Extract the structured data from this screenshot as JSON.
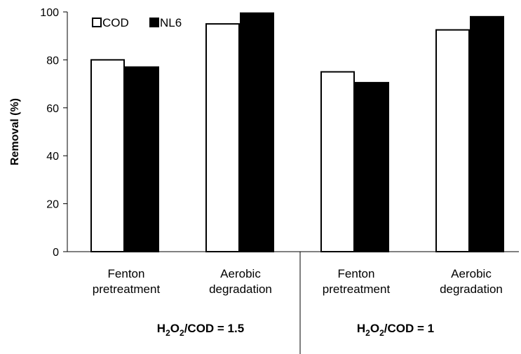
{
  "chart_data": {
    "type": "bar",
    "ylabel": "Removal (%)",
    "ylim": [
      0,
      100
    ],
    "yticks": [
      0,
      20,
      40,
      60,
      80,
      100
    ],
    "grid": false,
    "legend_position": "top-left",
    "categories": [
      {
        "line1": "Fenton",
        "line2": "pretreatment"
      },
      {
        "line1": "Aerobic",
        "line2": "degradation"
      },
      {
        "line1": "Fenton",
        "line2": "pretreatment"
      },
      {
        "line1": "Aerobic",
        "line2": "degradation"
      }
    ],
    "groups": [
      {
        "label_prefix": "H",
        "sub1": "2",
        "mid": "O",
        "sub2": "2",
        "label_suffix": "/COD = 1.5"
      },
      {
        "label_prefix": "H",
        "sub1": "2",
        "mid": "O",
        "sub2": "2",
        "label_suffix": "/COD = 1"
      }
    ],
    "series": [
      {
        "name": "COD",
        "color": "#ffffff",
        "values": [
          80,
          95,
          75,
          92.5
        ]
      },
      {
        "name": "NL6",
        "color": "#000000",
        "values": [
          77,
          99.5,
          70.5,
          98
        ]
      }
    ]
  }
}
